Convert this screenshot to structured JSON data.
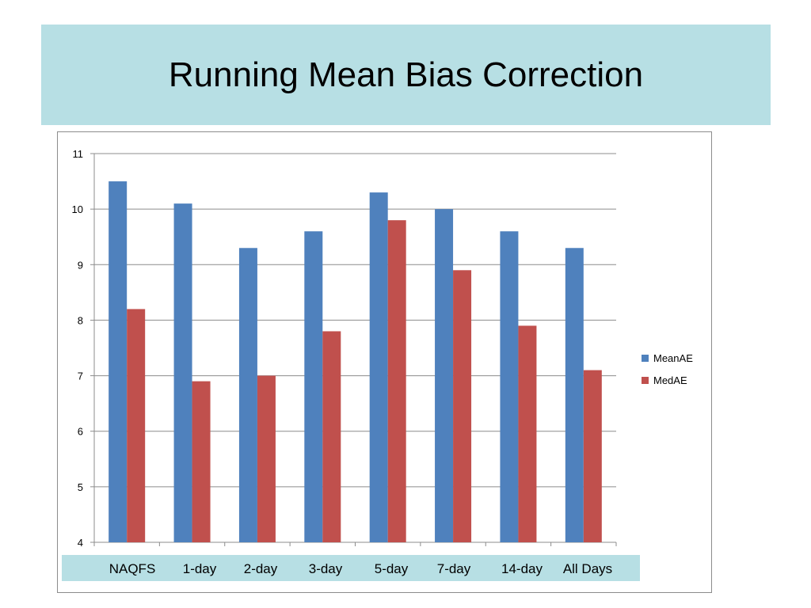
{
  "title": "Running Mean Bias Correction",
  "colors": {
    "banner": "#b7dfe4",
    "meanae": "#4f81bd",
    "medae": "#c0504d",
    "grid": "#8c8c8c"
  },
  "chart_data": {
    "type": "bar",
    "title": "",
    "xlabel": "",
    "ylabel": "",
    "categories": [
      "NAQFS",
      "1-day",
      "2-day",
      "3-day",
      "5-day",
      "7-day",
      "14-day",
      "All Days"
    ],
    "series": [
      {
        "name": "MeanAE",
        "color": "#4f81bd",
        "values": [
          10.5,
          10.1,
          9.3,
          9.6,
          10.3,
          10.0,
          9.6,
          9.3
        ]
      },
      {
        "name": "MedAE",
        "color": "#c0504d",
        "values": [
          8.2,
          6.9,
          7.0,
          7.8,
          9.8,
          8.9,
          7.9,
          7.1
        ]
      }
    ],
    "ylim": [
      4,
      11
    ],
    "yticks": [
      "4",
      "5",
      "6",
      "7",
      "8",
      "9",
      "10",
      "11"
    ],
    "grid": true,
    "legend_position": "right"
  }
}
